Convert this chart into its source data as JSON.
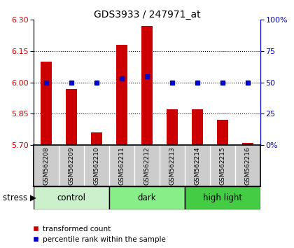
{
  "title": "GDS3933 / 247971_at",
  "samples": [
    "GSM562208",
    "GSM562209",
    "GSM562210",
    "GSM562211",
    "GSM562212",
    "GSM562213",
    "GSM562214",
    "GSM562215",
    "GSM562216"
  ],
  "red_values": [
    6.1,
    5.97,
    5.76,
    6.18,
    6.27,
    5.87,
    5.87,
    5.82,
    5.71
  ],
  "blue_values": [
    50,
    50,
    50,
    53,
    55,
    50,
    50,
    50,
    50
  ],
  "ylim_left": [
    5.7,
    6.3
  ],
  "ylim_right": [
    0,
    100
  ],
  "yticks_left": [
    5.7,
    5.85,
    6.0,
    6.15,
    6.3
  ],
  "yticks_right": [
    0,
    25,
    50,
    75,
    100
  ],
  "ytick_labels_right": [
    "0%",
    "25",
    "50",
    "75",
    "100%"
  ],
  "hlines": [
    5.85,
    6.0,
    6.15
  ],
  "groups": [
    {
      "label": "control",
      "start": 0,
      "end": 3,
      "color": "#ccf0cc"
    },
    {
      "label": "dark",
      "start": 3,
      "end": 6,
      "color": "#88ee88"
    },
    {
      "label": "high light",
      "start": 6,
      "end": 9,
      "color": "#44cc44"
    }
  ],
  "bar_color": "#cc0000",
  "dot_color": "#0000cc",
  "left_axis_color": "#cc0000",
  "right_axis_color": "#0000cc",
  "bar_width": 0.45,
  "stress_label": "stress",
  "legend_red": "transformed count",
  "legend_blue": "percentile rank within the sample",
  "gray_color": "#cccccc",
  "white_color": "#ffffff"
}
